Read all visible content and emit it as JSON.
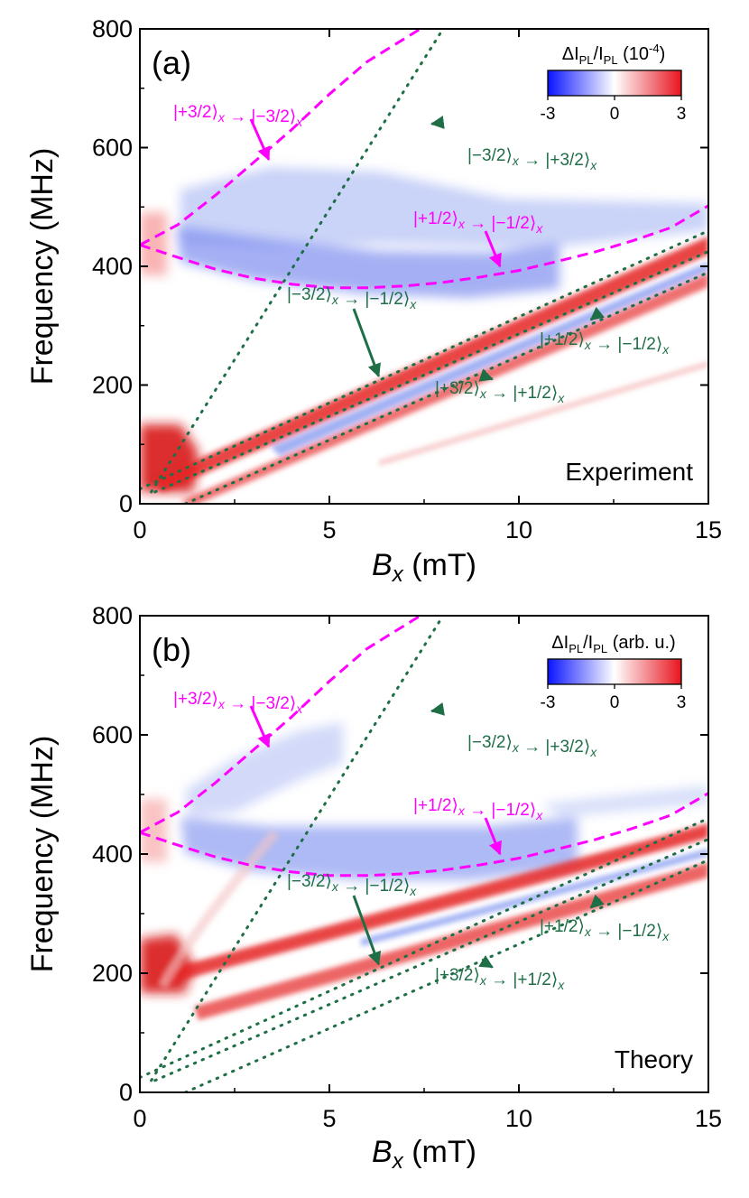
{
  "chart_data": [
    {
      "type": "heatmap",
      "panel_label": "(a)",
      "corner_label": "Experiment",
      "xlabel_var": "B",
      "xlabel_sub": "x",
      "xlabel_unit": "(mT)",
      "ylabel": "Frequency (MHz)",
      "xlim": [
        0,
        15
      ],
      "ylim": [
        0,
        800
      ],
      "xticks": [
        "0",
        "5",
        "10",
        "15"
      ],
      "yticks": [
        "0",
        "200",
        "400",
        "600",
        "800"
      ],
      "colorbar": {
        "title_main": "ΔI",
        "title_sub1": "PL",
        "title_slash": "/I",
        "title_sub2": "PL",
        "title_suffix": " (10",
        "title_exp": "-4",
        "title_close": ")",
        "ticks": [
          "-3",
          "0",
          "3"
        ],
        "range": [
          -3,
          3
        ]
      },
      "annotations": [
        {
          "text": "|+3/2⟩ₓ → |−3/2⟩ₓ",
          "color": "#ff00ff",
          "arrow_to": [
            3.4,
            580
          ]
        },
        {
          "text": "|−3/2⟩ₓ → |+3/2⟩ₓ",
          "color": "#1e6e46",
          "arrow_to": [
            7.7,
            640
          ]
        },
        {
          "text": "|+1/2⟩ₓ → |−1/2⟩ₓ",
          "color": "#ff00ff",
          "arrow_to": [
            9.5,
            400
          ]
        },
        {
          "text": "|−3/2⟩ₓ → |−1/2⟩ₓ",
          "color": "#1e6e46",
          "arrow_to": [
            6.3,
            215
          ]
        },
        {
          "text": "|+1/2⟩ₓ → |−1/2⟩ₓ",
          "color": "#1e6e46",
          "arrow_to": [
            11.9,
            310
          ]
        },
        {
          "text": "|+3/2⟩ₓ → |+1/2⟩ₓ",
          "color": "#1e6e46",
          "arrow_to": [
            9.3,
            210
          ]
        }
      ],
      "theory_curves": [
        {
          "name": "|+3/2⟩x → |−3/2⟩x",
          "style": "dashed",
          "color": "#ff00ff",
          "x": [
            0,
            1,
            2,
            3,
            4,
            5,
            6,
            7.4
          ],
          "y": [
            436,
            470,
            520,
            575,
            630,
            690,
            745,
            800
          ]
        },
        {
          "name": "|+1/2⟩x → |−1/2⟩x",
          "style": "dashed",
          "color": "#ff00ff",
          "x": [
            0,
            1,
            2,
            3,
            4,
            5,
            6,
            7,
            8,
            9,
            10,
            11,
            12,
            13,
            14,
            15
          ],
          "y": [
            436,
            415,
            395,
            380,
            370,
            364,
            364,
            367,
            373,
            382,
            393,
            408,
            424,
            443,
            465,
            502
          ]
        },
        {
          "name": "|−3/2⟩x → |+3/2⟩x",
          "style": "dotted",
          "color": "#1e6e46",
          "x": [
            0.3,
            8.0
          ],
          "y": [
            20,
            800
          ]
        },
        {
          "name": "|−3/2⟩x → |−1/2⟩x",
          "style": "dotted",
          "color": "#1e6e46",
          "x": [
            0,
            15
          ],
          "y": [
            25,
            460
          ]
        },
        {
          "name": "|+1/2⟩x → |−1/2⟩x",
          "style": "dotted",
          "color": "#1e6e46",
          "x": [
            0.4,
            15
          ],
          "y": [
            20,
            425
          ]
        },
        {
          "name": "|+3/2⟩x → |+1/2⟩x",
          "style": "dotted",
          "color": "#1e6e46",
          "x": [
            1.2,
            15
          ],
          "y": [
            0,
            390
          ]
        }
      ]
    },
    {
      "type": "heatmap",
      "panel_label": "(b)",
      "corner_label": "Theory",
      "xlabel_var": "B",
      "xlabel_sub": "x",
      "xlabel_unit": "(mT)",
      "ylabel": "Frequency (MHz)",
      "xlim": [
        0,
        15
      ],
      "ylim": [
        0,
        800
      ],
      "xticks": [
        "0",
        "5",
        "10",
        "15"
      ],
      "yticks": [
        "0",
        "200",
        "400",
        "600",
        "800"
      ],
      "colorbar": {
        "title_main": "ΔI",
        "title_sub1": "PL",
        "title_slash": "/I",
        "title_sub2": "PL",
        "title_suffix": " (arb. u.)",
        "title_exp": "",
        "title_close": "",
        "ticks": [
          "-3",
          "0",
          "3"
        ],
        "range": [
          -3,
          3
        ]
      },
      "annotations": [
        {
          "text": "|+3/2⟩ₓ → |−3/2⟩ₓ",
          "color": "#ff00ff",
          "arrow_to": [
            3.4,
            580
          ]
        },
        {
          "text": "|−3/2⟩ₓ → |+3/2⟩ₓ",
          "color": "#1e6e46",
          "arrow_to": [
            7.7,
            640
          ]
        },
        {
          "text": "|+1/2⟩ₓ → |−1/2⟩ₓ",
          "color": "#ff00ff",
          "arrow_to": [
            9.5,
            400
          ]
        },
        {
          "text": "|−3/2⟩ₓ → |−1/2⟩ₓ",
          "color": "#1e6e46",
          "arrow_to": [
            6.3,
            215
          ]
        },
        {
          "text": "|+1/2⟩ₓ → |−1/2⟩ₓ",
          "color": "#1e6e46",
          "arrow_to": [
            11.9,
            310
          ]
        },
        {
          "text": "|+3/2⟩ₓ → |+1/2⟩ₓ",
          "color": "#1e6e46",
          "arrow_to": [
            9.3,
            210
          ]
        }
      ],
      "theory_curves": [
        {
          "name": "|+3/2⟩x → |−3/2⟩x",
          "style": "dashed",
          "color": "#ff00ff",
          "x": [
            0,
            1,
            2,
            3,
            4,
            5,
            6,
            7.4
          ],
          "y": [
            436,
            470,
            520,
            575,
            630,
            690,
            745,
            800
          ]
        },
        {
          "name": "|+1/2⟩x → |−1/2⟩x",
          "style": "dashed",
          "color": "#ff00ff",
          "x": [
            0,
            1,
            2,
            3,
            4,
            5,
            6,
            7,
            8,
            9,
            10,
            11,
            12,
            13,
            14,
            15
          ],
          "y": [
            436,
            415,
            395,
            380,
            370,
            364,
            364,
            367,
            373,
            382,
            393,
            408,
            424,
            443,
            465,
            502
          ]
        },
        {
          "name": "|−3/2⟩x → |+3/2⟩x",
          "style": "dotted",
          "color": "#1e6e46",
          "x": [
            0.3,
            8.0
          ],
          "y": [
            20,
            800
          ]
        },
        {
          "name": "|−3/2⟩x → |−1/2⟩x",
          "style": "dotted",
          "color": "#1e6e46",
          "x": [
            0,
            15
          ],
          "y": [
            25,
            460
          ]
        },
        {
          "name": "|+1/2⟩x → |−1/2⟩x",
          "style": "dotted",
          "color": "#1e6e46",
          "x": [
            0.4,
            15
          ],
          "y": [
            20,
            425
          ]
        },
        {
          "name": "|+3/2⟩x → |+1/2⟩x",
          "style": "dotted",
          "color": "#1e6e46",
          "x": [
            1.2,
            15
          ],
          "y": [
            0,
            390
          ]
        }
      ]
    }
  ]
}
